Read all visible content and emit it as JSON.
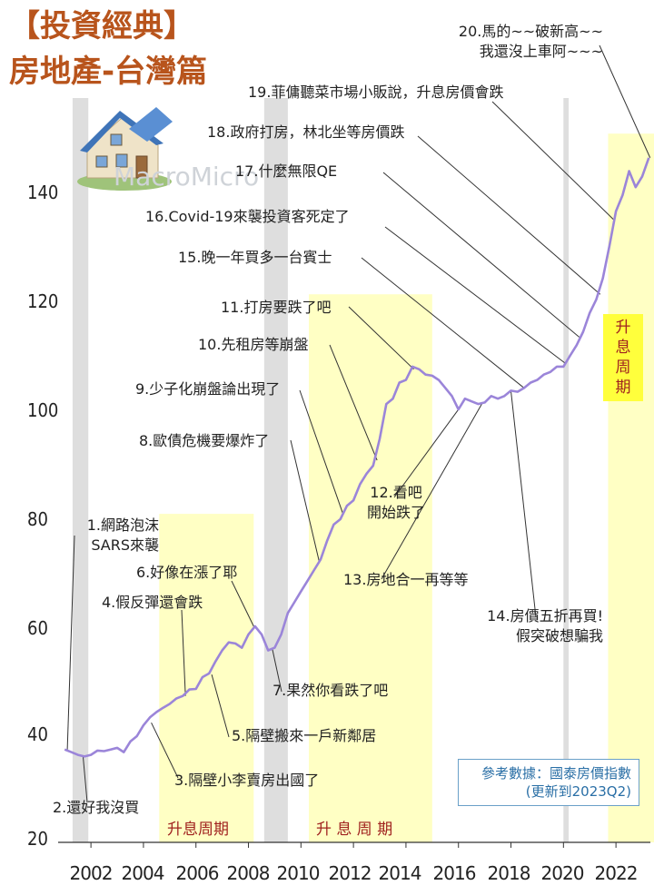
{
  "title_line1": "【投資經典】",
  "title_line2": "房地產-台灣篇",
  "watermark": "MacroMicro",
  "source": {
    "line1": "參考數據：國泰房價指數",
    "line2": "(更新到2023Q2)"
  },
  "chart_data": {
    "type": "line",
    "title": "房地產-台灣篇",
    "xlabel": "",
    "ylabel": "",
    "ylim": [
      20,
      150
    ],
    "xlim": [
      2001.0,
      2023.5
    ],
    "yticks": [
      20,
      40,
      60,
      80,
      100,
      120,
      140
    ],
    "xticks": [
      2002,
      2004,
      2006,
      2008,
      2010,
      2012,
      2014,
      2016,
      2018,
      2020,
      2022
    ],
    "line_color": "#9b85d9",
    "grid": false,
    "grey_bands": [
      [
        2001.3,
        2001.9
      ],
      [
        2008.6,
        2009.5
      ],
      [
        2020.0,
        2020.2
      ]
    ],
    "yellow_bands": [
      {
        "from": 2004.6,
        "to": 2008.2,
        "ylim_top": 81,
        "label": "升息周期"
      },
      {
        "from": 2010.3,
        "to": 2015.0,
        "ylim_top": 122,
        "label": "升 息 周 期"
      },
      {
        "from": 2021.7,
        "to": 2023.5,
        "ylim_top": 152,
        "label": "升息周期"
      }
    ],
    "points": [
      {
        "x": 2001.0,
        "y": 37.0
      },
      {
        "x": 2001.25,
        "y": 36.5
      },
      {
        "x": 2001.5,
        "y": 36.0
      },
      {
        "x": 2001.75,
        "y": 35.7
      },
      {
        "x": 2002.0,
        "y": 36.0
      },
      {
        "x": 2002.25,
        "y": 36.8
      },
      {
        "x": 2002.5,
        "y": 36.7
      },
      {
        "x": 2002.75,
        "y": 37.0
      },
      {
        "x": 2003.0,
        "y": 37.3
      },
      {
        "x": 2003.25,
        "y": 36.5
      },
      {
        "x": 2003.5,
        "y": 38.5
      },
      {
        "x": 2003.75,
        "y": 39.5
      },
      {
        "x": 2004.0,
        "y": 41.5
      },
      {
        "x": 2004.25,
        "y": 43.0
      },
      {
        "x": 2004.5,
        "y": 44.0
      },
      {
        "x": 2004.75,
        "y": 44.8
      },
      {
        "x": 2005.0,
        "y": 45.5
      },
      {
        "x": 2005.25,
        "y": 46.5
      },
      {
        "x": 2005.5,
        "y": 47.0
      },
      {
        "x": 2005.75,
        "y": 48.2
      },
      {
        "x": 2006.0,
        "y": 48.3
      },
      {
        "x": 2006.25,
        "y": 50.5
      },
      {
        "x": 2006.5,
        "y": 51.2
      },
      {
        "x": 2006.75,
        "y": 53.5
      },
      {
        "x": 2007.0,
        "y": 55.5
      },
      {
        "x": 2007.25,
        "y": 57.0
      },
      {
        "x": 2007.5,
        "y": 56.8
      },
      {
        "x": 2007.75,
        "y": 56.0
      },
      {
        "x": 2008.0,
        "y": 58.5
      },
      {
        "x": 2008.25,
        "y": 60.0
      },
      {
        "x": 2008.5,
        "y": 58.5
      },
      {
        "x": 2008.75,
        "y": 55.5
      },
      {
        "x": 2009.0,
        "y": 56.0
      },
      {
        "x": 2009.25,
        "y": 58.5
      },
      {
        "x": 2009.5,
        "y": 62.5
      },
      {
        "x": 2009.75,
        "y": 64.5
      },
      {
        "x": 2010.0,
        "y": 66.5
      },
      {
        "x": 2010.25,
        "y": 68.5
      },
      {
        "x": 2010.5,
        "y": 70.5
      },
      {
        "x": 2010.75,
        "y": 72.5
      },
      {
        "x": 2011.0,
        "y": 76.0
      },
      {
        "x": 2011.25,
        "y": 79.0
      },
      {
        "x": 2011.5,
        "y": 80.0
      },
      {
        "x": 2011.75,
        "y": 82.5
      },
      {
        "x": 2012.0,
        "y": 83.5
      },
      {
        "x": 2012.25,
        "y": 86.5
      },
      {
        "x": 2012.5,
        "y": 88.5
      },
      {
        "x": 2012.75,
        "y": 90.0
      },
      {
        "x": 2013.0,
        "y": 95.0
      },
      {
        "x": 2013.25,
        "y": 101.5
      },
      {
        "x": 2013.5,
        "y": 102.5
      },
      {
        "x": 2013.75,
        "y": 105.5
      },
      {
        "x": 2014.0,
        "y": 106.0
      },
      {
        "x": 2014.25,
        "y": 108.5
      },
      {
        "x": 2014.5,
        "y": 108.0
      },
      {
        "x": 2014.75,
        "y": 107.0
      },
      {
        "x": 2015.0,
        "y": 106.8
      },
      {
        "x": 2015.25,
        "y": 106.0
      },
      {
        "x": 2015.5,
        "y": 104.5
      },
      {
        "x": 2015.75,
        "y": 103.0
      },
      {
        "x": 2016.0,
        "y": 100.5
      },
      {
        "x": 2016.25,
        "y": 102.5
      },
      {
        "x": 2016.5,
        "y": 102.0
      },
      {
        "x": 2016.75,
        "y": 101.5
      },
      {
        "x": 2017.0,
        "y": 101.8
      },
      {
        "x": 2017.25,
        "y": 103.0
      },
      {
        "x": 2017.5,
        "y": 102.5
      },
      {
        "x": 2017.75,
        "y": 103.0
      },
      {
        "x": 2018.0,
        "y": 104.0
      },
      {
        "x": 2018.25,
        "y": 103.8
      },
      {
        "x": 2018.5,
        "y": 104.5
      },
      {
        "x": 2018.75,
        "y": 105.5
      },
      {
        "x": 2019.0,
        "y": 106.0
      },
      {
        "x": 2019.25,
        "y": 107.0
      },
      {
        "x": 2019.5,
        "y": 107.5
      },
      {
        "x": 2019.75,
        "y": 108.5
      },
      {
        "x": 2020.0,
        "y": 108.5
      },
      {
        "x": 2020.25,
        "y": 110.5
      },
      {
        "x": 2020.5,
        "y": 112.5
      },
      {
        "x": 2020.75,
        "y": 115.0
      },
      {
        "x": 2021.0,
        "y": 118.5
      },
      {
        "x": 2021.25,
        "y": 121.0
      },
      {
        "x": 2021.5,
        "y": 125.0
      },
      {
        "x": 2021.75,
        "y": 131.0
      },
      {
        "x": 2022.0,
        "y": 137.5
      },
      {
        "x": 2022.25,
        "y": 140.5
      },
      {
        "x": 2022.5,
        "y": 145.0
      },
      {
        "x": 2022.75,
        "y": 142.0
      },
      {
        "x": 2023.0,
        "y": 144.0
      },
      {
        "x": 2023.25,
        "y": 147.5
      }
    ],
    "annotations": [
      {
        "lines": [
          "1.網路泡沫",
          "SARS來襲"
        ],
        "x": 2001.1,
        "y": 37
      },
      {
        "lines": [
          "2.還好我沒買"
        ],
        "x": 2001.7,
        "y": 35.7
      },
      {
        "lines": [
          "3.隔壁小李賣房出國了"
        ],
        "x": 2004.3,
        "y": 42
      },
      {
        "lines": [
          "4.假反彈還會跌"
        ],
        "x": 2005.6,
        "y": 47
      },
      {
        "lines": [
          "5.隔壁搬來一戶新鄰居"
        ],
        "x": 2006.6,
        "y": 51
      },
      {
        "lines": [
          "6.好像在漲了耶"
        ],
        "x": 2008.2,
        "y": 60
      },
      {
        "lines": [
          "7.果然你看跌了吧"
        ],
        "x": 2008.9,
        "y": 56
      },
      {
        "lines": [
          "8.歐債危機要爆炸了"
        ],
        "x": 2010.7,
        "y": 72
      },
      {
        "lines": [
          "9.少子化崩盤論出現了"
        ],
        "x": 2011.6,
        "y": 81
      },
      {
        "lines": [
          "10.先租房等崩盤"
        ],
        "x": 2012.9,
        "y": 91
      },
      {
        "lines": [
          "11.打房要跌了吧"
        ],
        "x": 2014.3,
        "y": 108
      },
      {
        "lines": [
          "12.看吧",
          "開始跌了"
        ],
        "x": 2016.0,
        "y": 100.5
      },
      {
        "lines": [
          "13.房地合一再等等"
        ],
        "x": 2016.9,
        "y": 101.6
      },
      {
        "lines": [
          "14.房價五折再買!",
          "假突破想騙我"
        ],
        "x": 2018.0,
        "y": 103.9
      },
      {
        "lines": [
          "15.晚一年買多一台賓士"
        ],
        "x": 2018.5,
        "y": 104.5
      },
      {
        "lines": [
          "16.Covid-19來襲投資客死定了"
        ],
        "x": 2020.1,
        "y": 109
      },
      {
        "lines": [
          "17.什麼無限QE"
        ],
        "x": 2020.6,
        "y": 114
      },
      {
        "lines": [
          "18.政府打房，林北坐等房價跌"
        ],
        "x": 2021.4,
        "y": 122
      },
      {
        "lines": [
          "19.菲傭聽菜市場小販說，升息房價會跌"
        ],
        "x": 2021.9,
        "y": 136
      },
      {
        "lines": [
          "20.馬的~~破新高~~",
          "我還沒上車阿~~~"
        ],
        "x": 2023.3,
        "y": 147.5
      }
    ]
  }
}
